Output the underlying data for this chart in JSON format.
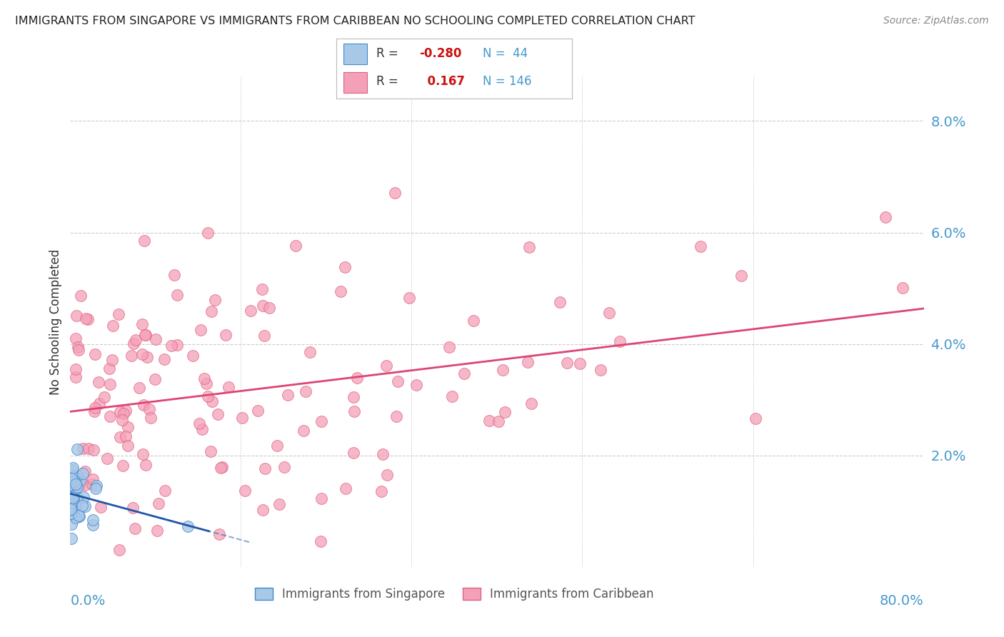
{
  "title": "IMMIGRANTS FROM SINGAPORE VS IMMIGRANTS FROM CARIBBEAN NO SCHOOLING COMPLETED CORRELATION CHART",
  "source": "Source: ZipAtlas.com",
  "ylabel": "No Schooling Completed",
  "legend_label1": "Immigrants from Singapore",
  "legend_label2": "Immigrants from Caribbean",
  "R1": -0.28,
  "N1": 44,
  "R2": 0.167,
  "N2": 146,
  "color_blue_fill": "#a8c8e8",
  "color_blue_edge": "#4488cc",
  "color_pink_fill": "#f4a0b8",
  "color_pink_edge": "#e06080",
  "color_blue_line": "#2255aa",
  "color_pink_line": "#dd4477",
  "color_axis_labels": "#4499cc",
  "background": "#ffffff",
  "xlim": [
    0.0,
    0.8
  ],
  "ylim": [
    0.0,
    0.088
  ],
  "yticks": [
    0.0,
    0.02,
    0.04,
    0.06,
    0.08
  ],
  "ytick_labels": [
    "",
    "2.0%",
    "4.0%",
    "6.0%",
    "8.0%"
  ],
  "xtick_labels": [
    "0.0%",
    "80.0%"
  ]
}
